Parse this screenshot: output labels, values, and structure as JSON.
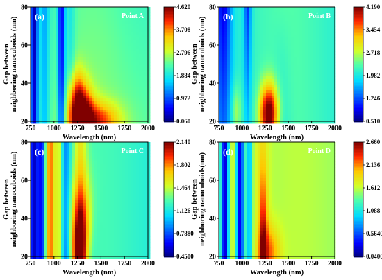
{
  "chart_data": [
    {
      "type": "heatmap",
      "panel_label": "(a)",
      "point_label": "Point A",
      "xlabel": "Wavelength (nm)",
      "ylabel": "Gap between neighboring nanocuboids (nm)",
      "ylabel_lines": [
        "Gap between",
        "neighboring nanocuboids (nm)"
      ],
      "xlim": [
        750,
        2000
      ],
      "ylim": [
        20,
        80
      ],
      "x_ticks": [
        "750",
        "1000",
        "1250",
        "1500",
        "1750",
        "2000"
      ],
      "y_ticks": [
        "20",
        "40",
        "60",
        "80"
      ],
      "colorbar_ticks": [
        "4.620",
        "3.708",
        "2.796",
        "1.884",
        "0.972",
        "0.060"
      ],
      "colorbar_range": [
        0.06,
        4.62
      ]
    },
    {
      "type": "heatmap",
      "panel_label": "(b)",
      "point_label": "Point B",
      "xlabel": "Wavelength (nm)",
      "ylabel": "Gap between neighboring nanocuboids (nm)",
      "ylabel_lines": [
        "Gap between",
        "neighboring nanocuboids (nm)"
      ],
      "xlim": [
        750,
        2000
      ],
      "ylim": [
        20,
        80
      ],
      "x_ticks": [
        "750",
        "1000",
        "1250",
        "1500",
        "1750",
        "2000"
      ],
      "y_ticks": [
        "20",
        "40",
        "60",
        "80"
      ],
      "colorbar_ticks": [
        "4.190",
        "3.454",
        "2.718",
        "1.982",
        "1.246",
        "0.510"
      ],
      "colorbar_range": [
        0.51,
        4.19
      ]
    },
    {
      "type": "heatmap",
      "panel_label": "(c)",
      "point_label": "Point C",
      "xlabel": "Wavelength (nm)",
      "ylabel": "Gap between neighboring nanocuboids (nm)",
      "ylabel_lines": [
        "Gap between",
        "neighboring nanocuboids (nm)"
      ],
      "xlim": [
        750,
        2000
      ],
      "ylim": [
        20,
        80
      ],
      "x_ticks": [
        "750",
        "1000",
        "1250",
        "1500",
        "1750",
        "2000"
      ],
      "y_ticks": [
        "20",
        "40",
        "60",
        "80"
      ],
      "colorbar_ticks": [
        "2.140",
        "1.802",
        "1.464",
        "1.126",
        "0.7880",
        "0.4500"
      ],
      "colorbar_range": [
        0.45,
        2.14
      ]
    },
    {
      "type": "heatmap",
      "panel_label": "(d)",
      "point_label": "Point D",
      "xlabel": "Wavelength (nm)",
      "ylabel": "Gap between neighboring nanocuboids(nm)",
      "ylabel_lines": [
        "Gap between",
        "neighboring nanocuboids(nm)"
      ],
      "xlim": [
        750,
        2000
      ],
      "ylim": [
        20,
        80
      ],
      "x_ticks": [
        "750",
        "1000",
        "1250",
        "1500",
        "1750",
        "2000"
      ],
      "y_ticks": [
        "20",
        "40",
        "60",
        "80"
      ],
      "colorbar_ticks": [
        "2.660",
        "2.136",
        "1.612",
        "1.088",
        "0.5640",
        "0.04000"
      ],
      "colorbar_range": [
        0.04,
        2.66
      ]
    }
  ]
}
